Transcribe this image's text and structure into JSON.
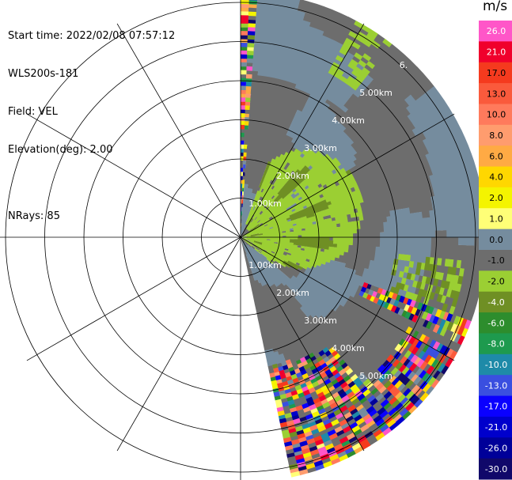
{
  "header": {
    "start_time": "Start time: 2022/02/08 07:57:12",
    "instrument": "WLS200s-181",
    "field": "Field: VEL",
    "elevation": "Elevation(deg): 2.00",
    "nrays": "NRays: 85"
  },
  "colorbar": {
    "unit": "m/s",
    "levels": [
      {
        "label": "26.0",
        "color": "#ff56c8"
      },
      {
        "label": "21.0",
        "color": "#f0002c"
      },
      {
        "label": "17.0",
        "color": "#f53a1e"
      },
      {
        "label": "13.0",
        "color": "#fa5a3c"
      },
      {
        "label": "10.0",
        "color": "#ff7a5c"
      },
      {
        "label": "8.0",
        "color": "#ff9c6e"
      },
      {
        "label": "6.0",
        "color": "#ffaa44"
      },
      {
        "label": "4.0",
        "color": "#ffd700"
      },
      {
        "label": "2.0",
        "color": "#f4f400"
      },
      {
        "label": "1.0",
        "color": "#ffff77"
      },
      {
        "label": "0.0",
        "color": "#758c9e"
      },
      {
        "label": "-1.0",
        "color": "#6d6d6d"
      },
      {
        "label": "-2.0",
        "color": "#9bcf33"
      },
      {
        "label": "-4.0",
        "color": "#6f8f24"
      },
      {
        "label": "-6.0",
        "color": "#2d8d2d"
      },
      {
        "label": "-8.0",
        "color": "#1e9a4e"
      },
      {
        "label": "-10.0",
        "color": "#1e8aa8"
      },
      {
        "label": "-13.0",
        "color": "#3a4fe0"
      },
      {
        "label": "-17.0",
        "color": "#0a00ff"
      },
      {
        "label": "-21.0",
        "color": "#0000cc"
      },
      {
        "label": "-26.0",
        "color": "#000099"
      },
      {
        "label": "-30.0",
        "color": "#10086a"
      }
    ]
  },
  "chart_data": {
    "type": "heatmap",
    "projection": "polar PPI",
    "field": "VEL",
    "unit": "m/s",
    "range_rings_km": [
      1,
      2,
      3,
      4,
      5,
      6
    ],
    "range_labels": [
      "1.00km",
      "2.00km",
      "3.00km",
      "4.00km",
      "5.00km",
      "6."
    ],
    "azimuth_spokes_deg": [
      0,
      30,
      60,
      90,
      120,
      150,
      180,
      210,
      240,
      270,
      300,
      330
    ],
    "sector_deg": [
      0,
      168
    ],
    "max_range_km": 6.2,
    "dominant_values": {
      "background_far": 0.0,
      "background_mid": -1.0,
      "near_region": -2.0,
      "patches": -4.0
    }
  }
}
